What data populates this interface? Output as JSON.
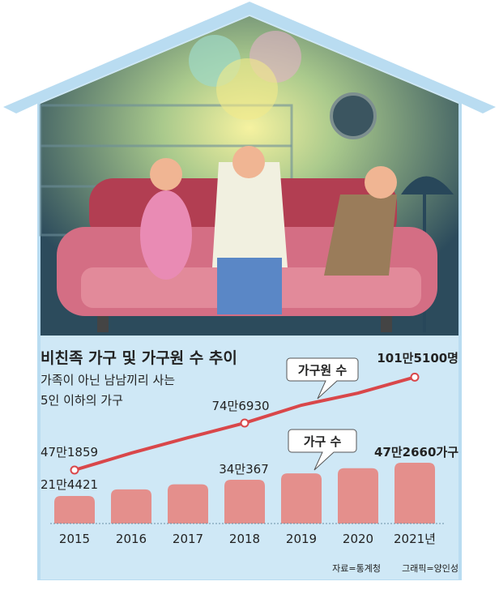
{
  "chart_data": {
    "type": "bar+line",
    "title": "비친족 가구 및 가구원 수 추이",
    "subtitle_lines": [
      "가족이 아닌 남남끼리 사는",
      "5인 이하의 가구"
    ],
    "categories": [
      "2015",
      "2016",
      "2017",
      "2018",
      "2019",
      "2020",
      "2021년"
    ],
    "series": [
      {
        "name": "가구원 수",
        "kind": "line",
        "color": "#d9474a",
        "values": [
          471859,
          571000,
          661000,
          746930,
          851000,
          922000,
          1015100
        ],
        "labels": {
          "0": "47만1859",
          "3": "74만6930",
          "6": "101만5100명"
        }
      },
      {
        "name": "가구 수",
        "kind": "bar",
        "color": "#e48f8c",
        "values": [
          214421,
          265000,
          305000,
          340367,
          390000,
          430000,
          472660
        ],
        "labels": {
          "0": "21만4421",
          "3": "34만367",
          "6": "47만2660가구"
        }
      }
    ],
    "source": "자료=통계청",
    "credit": "그래픽=양인성",
    "grid": false
  },
  "colors": {
    "background": "#cfe8f6",
    "house_outline": "#a9d3ee",
    "interior": "#2d4a5e"
  }
}
